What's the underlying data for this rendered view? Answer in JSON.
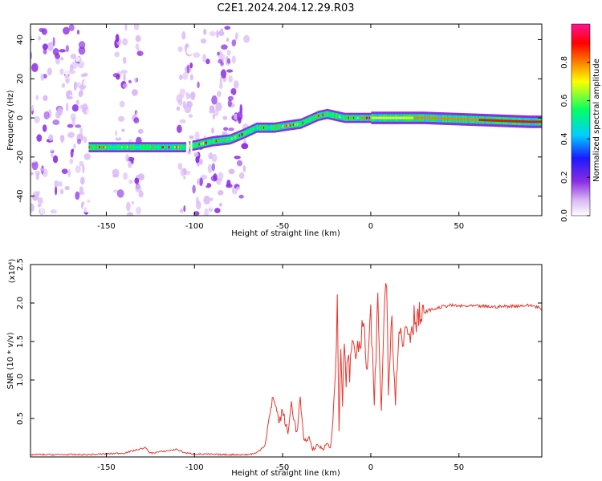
{
  "title": "C2E1.2024.204.12.29.R03",
  "chart_data": [
    {
      "type": "heatmap",
      "xlabel": "Height of straight line (km)",
      "ylabel": "Frequency (Hz)",
      "xlim": [
        -193,
        97
      ],
      "ylim": [
        -50,
        48
      ],
      "x_ticks": [
        -150,
        -100,
        -50,
        0,
        50
      ],
      "y_ticks": [
        -40,
        -20,
        0,
        20,
        40
      ],
      "colorbar": {
        "label": "Normalized spectral amplitude",
        "range": [
          0,
          1
        ],
        "ticks": [
          0.0,
          0.2,
          0.4,
          0.6,
          0.8
        ],
        "colormap": [
          "#ffffff",
          "#d9b8f5",
          "#8a2be2",
          "#1a1aff",
          "#00cfff",
          "#00ff66",
          "#ffff00",
          "#ff7f00",
          "#ff0000",
          "#ff1493"
        ]
      },
      "ridge_center": [
        [
          -160,
          -15
        ],
        [
          -145,
          -15
        ],
        [
          -120,
          -15
        ],
        [
          -106,
          -15
        ],
        [
          -100,
          -14
        ],
        [
          -90,
          -12
        ],
        [
          -80,
          -11
        ],
        [
          -72,
          -8
        ],
        [
          -65,
          -5
        ],
        [
          -55,
          -5
        ],
        [
          -48,
          -4
        ],
        [
          -40,
          -3
        ],
        [
          -35,
          -1
        ],
        [
          -30,
          1
        ],
        [
          -25,
          2
        ],
        [
          -15,
          0
        ],
        [
          -5,
          0
        ],
        [
          10,
          0
        ],
        [
          30,
          0
        ],
        [
          60,
          -1
        ],
        [
          90,
          -2
        ],
        [
          97,
          -2
        ]
      ],
      "noise_regions": [
        [
          -193,
          -160
        ],
        [
          -145,
          -130
        ],
        [
          -110,
          -70
        ]
      ]
    },
    {
      "type": "line",
      "xlabel": "Height of straight line (km)",
      "ylabel": "SNR (10 * v/v)",
      "yscale_label": "(x10⁴)",
      "xlim": [
        -193,
        97
      ],
      "ylim": [
        0,
        2.5
      ],
      "x_ticks": [
        -150,
        -100,
        -50,
        0,
        50
      ],
      "y_ticks": [
        0.5,
        1.0,
        1.5,
        2.0,
        2.5
      ],
      "color": "#e8362e",
      "series": [
        {
          "x": [
            -193,
            -160,
            -140,
            -128,
            -125,
            -115,
            -110,
            -105,
            -100,
            -85,
            -70,
            -65,
            -60,
            -58,
            -55,
            -52,
            -50,
            -47,
            -45,
            -42,
            -40,
            -38,
            -35,
            -33,
            -30,
            -27,
            -25,
            -23,
            -22,
            -20,
            -19,
            -18,
            -17,
            -16,
            -15,
            -14,
            -13,
            -12,
            -10,
            -8,
            -6,
            -4,
            -2,
            0,
            2,
            4,
            6,
            8,
            9,
            10,
            12,
            14,
            16,
            18,
            20,
            22,
            25,
            28,
            32,
            36,
            40,
            45,
            50,
            60,
            70,
            80,
            90,
            95,
            97
          ],
          "y": [
            0.03,
            0.03,
            0.05,
            0.12,
            0.05,
            0.08,
            0.1,
            0.05,
            0.04,
            0.03,
            0.03,
            0.05,
            0.15,
            0.45,
            0.8,
            0.45,
            0.6,
            0.3,
            0.7,
            0.3,
            0.75,
            0.2,
            0.25,
            0.1,
            0.15,
            0.1,
            0.2,
            0.1,
            0.3,
            1.1,
            2.2,
            0.3,
            1.4,
            0.6,
            1.6,
            1.0,
            1.3,
            1.1,
            1.6,
            1.3,
            1.5,
            1.7,
            1.1,
            1.8,
            0.7,
            2.0,
            0.6,
            2.1,
            2.5,
            0.9,
            1.9,
            0.7,
            1.8,
            1.4,
            1.75,
            1.6,
            1.85,
            1.8,
            1.9,
            1.92,
            1.95,
            1.97,
            1.96,
            1.96,
            1.95,
            1.96,
            1.97,
            1.95,
            1.9
          ]
        }
      ]
    }
  ]
}
